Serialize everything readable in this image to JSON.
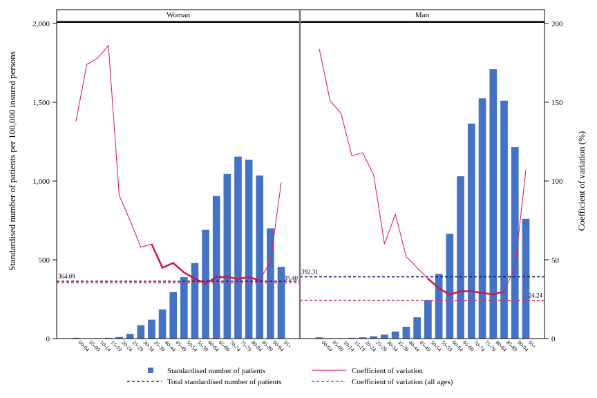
{
  "chart_data": {
    "type": "bar",
    "ylabel_left": "Standardised number of patients per 100,000 insured persons",
    "ylabel_right": "Coefficient of variation (%)",
    "ylim_left": [
      0,
      2000
    ],
    "ylim_right": [
      0,
      200
    ],
    "yticks_left": [
      "0",
      "500",
      "1,000",
      "1,500",
      "2,000"
    ],
    "yticks_left_values": [
      0,
      500,
      1000,
      1500,
      2000
    ],
    "yticks_right": [
      "0",
      "50",
      "100",
      "150",
      "200"
    ],
    "yticks_right_values": [
      0,
      50,
      100,
      150,
      200
    ],
    "categories": [
      "00-04",
      "05-09",
      "10-14",
      "15-19",
      "20-24",
      "25-29",
      "30-34",
      "35-39",
      "40-44",
      "45-49",
      "50-54",
      "55-59",
      "60-64",
      "65-69",
      "70-74",
      "75-79",
      "80-84",
      "85-89",
      "90-94",
      "95+"
    ],
    "panels": [
      {
        "name": "Woman",
        "bars": [
          5,
          2,
          3,
          5,
          10,
          30,
          85,
          120,
          185,
          295,
          390,
          480,
          690,
          905,
          1045,
          1155,
          1135,
          1035,
          700,
          455
        ],
        "cv": [
          138,
          174,
          178,
          186,
          91,
          75,
          58,
          60,
          45,
          48,
          42,
          38,
          35,
          39,
          39,
          38,
          39,
          37,
          49,
          99
        ],
        "total": 364.09,
        "total_label": "364.09",
        "cv_all": 35.4,
        "cv_all_label": "35.40"
      },
      {
        "name": "Man",
        "bars": [
          8,
          3,
          3,
          5,
          8,
          15,
          25,
          45,
          75,
          135,
          245,
          410,
          665,
          1030,
          1365,
          1525,
          1710,
          1510,
          1215,
          760
        ],
        "cv": [
          184,
          151,
          143,
          116,
          118,
          104,
          60,
          79,
          52,
          45,
          38,
          32,
          28,
          30,
          30,
          29,
          28,
          30,
          45,
          107
        ],
        "total": 392.31,
        "total_label": "392.31",
        "cv_all": 24.24,
        "cv_all_label": "24.24"
      }
    ],
    "legend": [
      {
        "label": "Standardised number of patients",
        "kind": "bar"
      },
      {
        "label": "Coefficient of variation",
        "kind": "line"
      },
      {
        "label": "Total standardised number of patients",
        "kind": "dash-blue"
      },
      {
        "label": "Coefficient of variation (all ages)",
        "kind": "dash-red"
      }
    ],
    "colors": {
      "bar": "#4472c4",
      "cv_line": "#e0205a",
      "cv_line_thick": "#d01848",
      "total_line": "#1f1f7a",
      "cv_all_line": "#d6356a",
      "total_label": "#1f1f7a",
      "cv_all_label": "#c0103c"
    },
    "grid": false,
    "legend_position": "bottom"
  }
}
